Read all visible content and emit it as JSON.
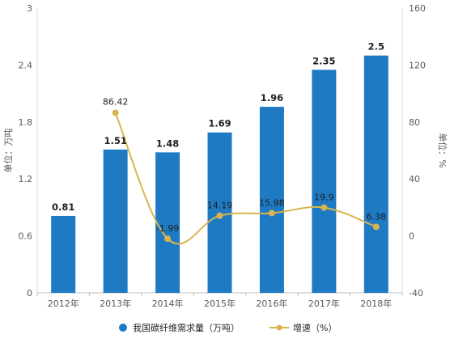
{
  "chart_data": {
    "type": "bar",
    "categories": [
      "2012年",
      "2013年",
      "2014年",
      "2015年",
      "2016年",
      "2017年",
      "2018年"
    ],
    "series": [
      {
        "name": "我国碳纤维需求量（万吨）",
        "type": "bar",
        "axis": "left",
        "color": "#1f7ac4",
        "values": [
          0.81,
          1.51,
          1.48,
          1.69,
          1.96,
          2.35,
          2.5
        ],
        "labels": [
          "0.81",
          "1.51",
          "1.48",
          "1.69",
          "1.96",
          "2.35",
          "2.5"
        ]
      },
      {
        "name": "增速（%）",
        "type": "line",
        "axis": "right",
        "color": "#d9b54e",
        "values": [
          null,
          86.42,
          -1.99,
          14.19,
          15.98,
          19.9,
          6.38
        ],
        "labels": [
          "",
          "86.42",
          "-1.99",
          "14.19",
          "15.98",
          "19.9",
          "6.38"
        ]
      }
    ],
    "ylabel": "单位：万吨",
    "y2label": "单位：%",
    "ylim": [
      0,
      3
    ],
    "y2lim": [
      -40,
      160
    ],
    "yticks": [
      "0",
      "0.6",
      "1.2",
      "1.8",
      "2.4",
      "3"
    ],
    "y2ticks": [
      "-40",
      "0",
      "40",
      "80",
      "120",
      "160"
    ],
    "grid": false,
    "legend": "bottom-center"
  }
}
